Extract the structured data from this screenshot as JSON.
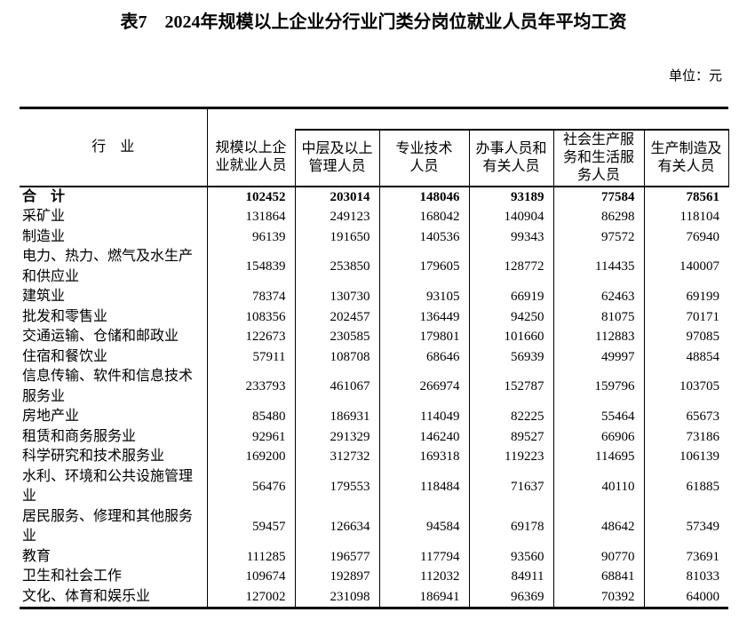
{
  "title": "表7　2024年规模以上企业分行业门类分岗位就业人员年平均工资",
  "unit_label": "单位：元",
  "table": {
    "row_header": "行　业",
    "col_headers": [
      "规模以上企\n业就业人员",
      "中层及以上\n管理人员",
      "专业技术\n人员",
      "办事人员和\n有关人员",
      "社会生产服\n务和生活服\n务人员",
      "生产制造及\n有关人员"
    ],
    "rows": [
      {
        "industry": "合　计",
        "bold": true,
        "values": [
          "102452",
          "203014",
          "148046",
          "93189",
          "77584",
          "78561"
        ]
      },
      {
        "industry": "采矿业",
        "bold": false,
        "values": [
          "131864",
          "249123",
          "168042",
          "140904",
          "86298",
          "118104"
        ]
      },
      {
        "industry": "制造业",
        "bold": false,
        "values": [
          "96139",
          "191650",
          "140536",
          "99343",
          "97572",
          "76940"
        ]
      },
      {
        "industry": "电力、热力、燃气及水生产和供应业",
        "bold": false,
        "values": [
          "154839",
          "253850",
          "179605",
          "128772",
          "114435",
          "140007"
        ]
      },
      {
        "industry": "建筑业",
        "bold": false,
        "values": [
          "78374",
          "130730",
          "93105",
          "66919",
          "62463",
          "69199"
        ]
      },
      {
        "industry": "批发和零售业",
        "bold": false,
        "values": [
          "108356",
          "202457",
          "136449",
          "94250",
          "81075",
          "70171"
        ]
      },
      {
        "industry": "交通运输、仓储和邮政业",
        "bold": false,
        "values": [
          "122673",
          "230585",
          "179801",
          "101660",
          "112883",
          "97085"
        ]
      },
      {
        "industry": "住宿和餐饮业",
        "bold": false,
        "values": [
          "57911",
          "108708",
          "68646",
          "56939",
          "49997",
          "48854"
        ]
      },
      {
        "industry": "信息传输、软件和信息技术服务业",
        "bold": false,
        "values": [
          "233793",
          "461067",
          "266974",
          "152787",
          "159796",
          "103705"
        ]
      },
      {
        "industry": "房地产业",
        "bold": false,
        "values": [
          "85480",
          "186931",
          "114049",
          "82225",
          "55464",
          "65673"
        ]
      },
      {
        "industry": "租赁和商务服务业",
        "bold": false,
        "values": [
          "92961",
          "291329",
          "146240",
          "89527",
          "66906",
          "73186"
        ]
      },
      {
        "industry": "科学研究和技术服务业",
        "bold": false,
        "values": [
          "169200",
          "312732",
          "169318",
          "119223",
          "114695",
          "106139"
        ]
      },
      {
        "industry": "水利、环境和公共设施管理业",
        "bold": false,
        "values": [
          "56476",
          "179553",
          "118484",
          "71637",
          "40110",
          "61885"
        ]
      },
      {
        "industry": "居民服务、修理和其他服务业",
        "bold": false,
        "values": [
          "59457",
          "126634",
          "94584",
          "69178",
          "48642",
          "57349"
        ]
      },
      {
        "industry": "教育",
        "bold": false,
        "values": [
          "111285",
          "196577",
          "117794",
          "93560",
          "90770",
          "73691"
        ]
      },
      {
        "industry": "卫生和社会工作",
        "bold": false,
        "values": [
          "109674",
          "192897",
          "112032",
          "84911",
          "68841",
          "81033"
        ]
      },
      {
        "industry": "文化、体育和娱乐业",
        "bold": false,
        "values": [
          "127002",
          "231098",
          "186941",
          "96369",
          "70392",
          "64000"
        ]
      }
    ]
  }
}
